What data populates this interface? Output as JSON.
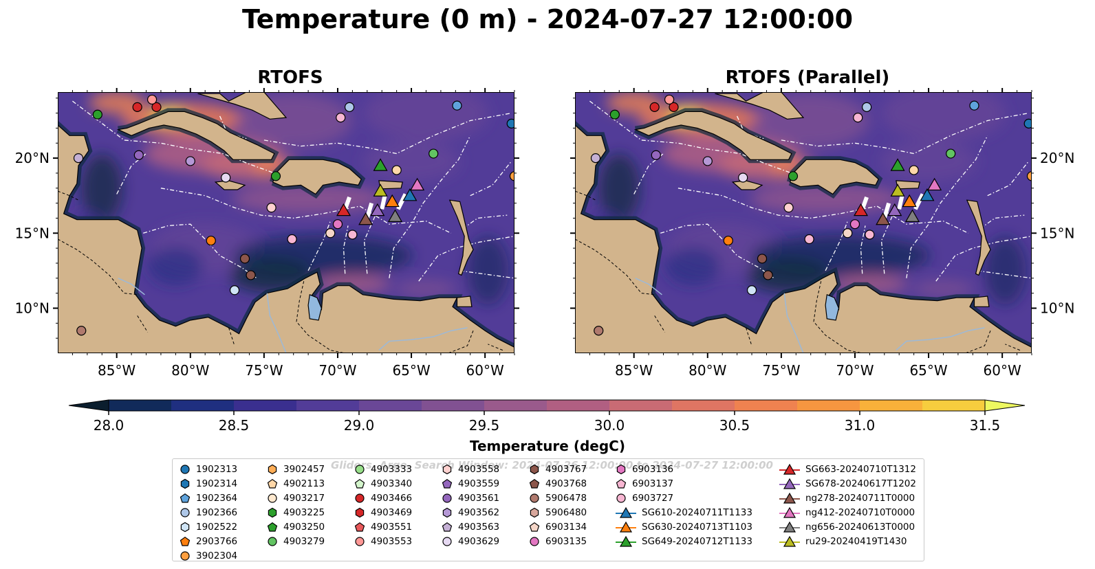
{
  "title": "Temperature (0 m) - 2024-07-27 12:00:00",
  "panels": [
    {
      "title": "RTOFS"
    },
    {
      "title": "RTOFS (Parallel)"
    }
  ],
  "axes": {
    "x_ticks": [
      {
        "value": -85,
        "label": "85°W"
      },
      {
        "value": -80,
        "label": "80°W"
      },
      {
        "value": -75,
        "label": "75°W"
      },
      {
        "value": -70,
        "label": "70°W"
      },
      {
        "value": -65,
        "label": "65°W"
      },
      {
        "value": -60,
        "label": "60°W"
      }
    ],
    "y_ticks": [
      {
        "value": 20,
        "label": "20°N"
      },
      {
        "value": 15,
        "label": "15°N"
      },
      {
        "value": 10,
        "label": "10°N"
      }
    ],
    "lon_range": [
      -89,
      -58
    ],
    "lat_range": [
      7,
      24.4
    ]
  },
  "colorbar": {
    "label": "Temperature (degC)",
    "min": 28.0,
    "max": 31.5,
    "tick_labels": [
      "28.0",
      "28.5",
      "29.0",
      "29.5",
      "30.0",
      "30.5",
      "31.0",
      "31.5"
    ],
    "colors": [
      "#0c2a3e",
      "#112a5a",
      "#1f2f80",
      "#3a2f8f",
      "#523c98",
      "#6a4797",
      "#815192",
      "#9a5a8c",
      "#b15f82",
      "#c96b74",
      "#df7563",
      "#ef8250",
      "#f69640",
      "#f9b13a",
      "#f7cd3e"
    ],
    "under_color": "#0b1e2e",
    "over_color": "#eef860"
  },
  "legend": {
    "watermark": "Gliders, Argo, Search Window: 2024-07-26 12:00:00 to 2024-07-27 12:00:00",
    "columns": [
      [
        {
          "label": "1902313",
          "color": "#1f77b4",
          "marker": "circle"
        },
        {
          "label": "1902314",
          "color": "#1f77b4",
          "marker": "hexagon"
        },
        {
          "label": "1902364",
          "color": "#5fa3dc",
          "marker": "pentagon"
        },
        {
          "label": "1902366",
          "color": "#aec7e8",
          "marker": "circle"
        },
        {
          "label": "1902522",
          "color": "#cfe4f5",
          "marker": "hexagon"
        },
        {
          "label": "2903766",
          "color": "#ff7f0e",
          "marker": "pentagon"
        },
        {
          "label": "3902304",
          "color": "#ff9f3f",
          "marker": "circle"
        }
      ],
      [
        {
          "label": "3902457",
          "color": "#ffae57",
          "marker": "hexagon"
        },
        {
          "label": "4902113",
          "color": "#ffd7a8",
          "marker": "pentagon"
        },
        {
          "label": "4903217",
          "color": "#ffe9cf",
          "marker": "circle"
        },
        {
          "label": "4903225",
          "color": "#2ca02c",
          "marker": "hexagon"
        },
        {
          "label": "4903250",
          "color": "#2ca02c",
          "marker": "pentagon"
        },
        {
          "label": "4903279",
          "color": "#62c462",
          "marker": "circle"
        }
      ],
      [
        {
          "label": "4903333",
          "color": "#98df8a",
          "marker": "circle"
        },
        {
          "label": "4903340",
          "color": "#d4f5cc",
          "marker": "pentagon"
        },
        {
          "label": "4903466",
          "color": "#d62728",
          "marker": "circle"
        },
        {
          "label": "4903469",
          "color": "#d62728",
          "marker": "hexagon"
        },
        {
          "label": "4903551",
          "color": "#e8585a",
          "marker": "pentagon"
        },
        {
          "label": "4903553",
          "color": "#ff9896",
          "marker": "circle"
        }
      ],
      [
        {
          "label": "4903558",
          "color": "#ffd1cf",
          "marker": "hexagon"
        },
        {
          "label": "4903559",
          "color": "#9467bd",
          "marker": "pentagon"
        },
        {
          "label": "4903561",
          "color": "#9467bd",
          "marker": "circle"
        },
        {
          "label": "4903562",
          "color": "#b598d6",
          "marker": "hexagon"
        },
        {
          "label": "4903563",
          "color": "#c5b0d5",
          "marker": "pentagon"
        },
        {
          "label": "4903629",
          "color": "#e6d9f2",
          "marker": "circle"
        }
      ],
      [
        {
          "label": "4903767",
          "color": "#8c564b",
          "marker": "hexagon"
        },
        {
          "label": "4903768",
          "color": "#8c564b",
          "marker": "pentagon"
        },
        {
          "label": "5906478",
          "color": "#b07a6e",
          "marker": "circle"
        },
        {
          "label": "5906480",
          "color": "#d8a79c",
          "marker": "hexagon"
        },
        {
          "label": "6903134",
          "color": "#f5d6c8",
          "marker": "pentagon"
        },
        {
          "label": "6903135",
          "color": "#e377c2",
          "marker": "circle"
        }
      ],
      [
        {
          "label": "6903136",
          "color": "#e377c2",
          "marker": "hexagon"
        },
        {
          "label": "6903137",
          "color": "#f7b6d2",
          "marker": "pentagon"
        },
        {
          "label": "6903727",
          "color": "#f7b6d2",
          "marker": "circle"
        },
        {
          "label": "SG610-20240711T1133",
          "color": "#1f77b4",
          "marker": "triangle-line"
        },
        {
          "label": "SG630-20240713T1103",
          "color": "#ff7f0e",
          "marker": "triangle-line"
        },
        {
          "label": "SG649-20240712T1133",
          "color": "#2ca02c",
          "marker": "triangle-line"
        }
      ],
      [
        {
          "label": "SG663-20240710T1312",
          "color": "#d62728",
          "marker": "triangle-line"
        },
        {
          "label": "SG678-20240617T1202",
          "color": "#9467bd",
          "marker": "triangle-line"
        },
        {
          "label": "ng278-20240711T0000",
          "color": "#8c564b",
          "marker": "triangle-line"
        },
        {
          "label": "ng412-20240710T0000",
          "color": "#e377c2",
          "marker": "triangle-line"
        },
        {
          "label": "ng656-20240613T0000",
          "color": "#7f7f7f",
          "marker": "triangle-line"
        },
        {
          "label": "ru29-20240419T1430",
          "color": "#bcbd22",
          "marker": "triangle-line"
        }
      ]
    ]
  },
  "observations": [
    {
      "id": "1902313",
      "lon": -58.2,
      "lat": 22.3
    },
    {
      "id": "1902364",
      "lon": -61.9,
      "lat": 23.5
    },
    {
      "id": "1902366",
      "lon": -69.2,
      "lat": 23.4
    },
    {
      "id": "1902522",
      "lon": -77.0,
      "lat": 11.2
    },
    {
      "id": "2903766",
      "lon": -78.6,
      "lat": 14.5
    },
    {
      "id": "3902304",
      "lon": -58.0,
      "lat": 18.8
    },
    {
      "id": "4902113",
      "lon": -66.0,
      "lat": 19.2
    },
    {
      "id": "4903225",
      "lon": -74.2,
      "lat": 18.8
    },
    {
      "id": "4903250",
      "lon": -86.3,
      "lat": 22.9
    },
    {
      "id": "4903279",
      "lon": -63.5,
      "lat": 20.3
    },
    {
      "id": "4903466",
      "lon": -83.6,
      "lat": 23.4
    },
    {
      "id": "4903469",
      "lon": -82.3,
      "lat": 23.4
    },
    {
      "id": "4903553",
      "lon": -82.6,
      "lat": 23.9
    },
    {
      "id": "4903558",
      "lon": -74.5,
      "lat": 16.7
    },
    {
      "id": "4903559",
      "lon": -83.5,
      "lat": 20.2
    },
    {
      "id": "4903562",
      "lon": -80.0,
      "lat": 19.8
    },
    {
      "id": "4903563",
      "lon": -87.6,
      "lat": 20.0
    },
    {
      "id": "4903629",
      "lon": -77.6,
      "lat": 18.7
    },
    {
      "id": "4903767",
      "lon": -76.3,
      "lat": 13.3
    },
    {
      "id": "4903768",
      "lon": -75.9,
      "lat": 12.2
    },
    {
      "id": "5906478",
      "lon": -87.4,
      "lat": 8.5
    },
    {
      "id": "6903134",
      "lon": -70.5,
      "lat": 15.0
    },
    {
      "id": "6903136",
      "lon": -70.0,
      "lat": 15.6
    },
    {
      "id": "6903137",
      "lon": -69.0,
      "lat": 14.9
    },
    {
      "id": "6903727",
      "lon": -69.8,
      "lat": 22.7
    },
    {
      "id": "6903727b",
      "lon": -73.1,
      "lat": 14.6
    },
    {
      "id": "SG610-20240711T1133",
      "lon": -65.1,
      "lat": 17.5
    },
    {
      "id": "SG630-20240713T1103",
      "lon": -66.3,
      "lat": 17.1
    },
    {
      "id": "SG649-20240712T1133",
      "lon": -67.1,
      "lat": 19.5
    },
    {
      "id": "SG663-20240710T1312",
      "lon": -69.6,
      "lat": 16.5
    },
    {
      "id": "SG678-20240617T1202",
      "lon": -67.3,
      "lat": 16.5
    },
    {
      "id": "ng278-20240711T0000",
      "lon": -68.1,
      "lat": 15.9
    },
    {
      "id": "ng412-20240710T0000",
      "lon": -64.6,
      "lat": 18.2
    },
    {
      "id": "ng656-20240613T0000",
      "lon": -66.1,
      "lat": 16.1
    },
    {
      "id": "ru29-20240419T1430",
      "lon": -67.1,
      "lat": 17.8
    }
  ]
}
